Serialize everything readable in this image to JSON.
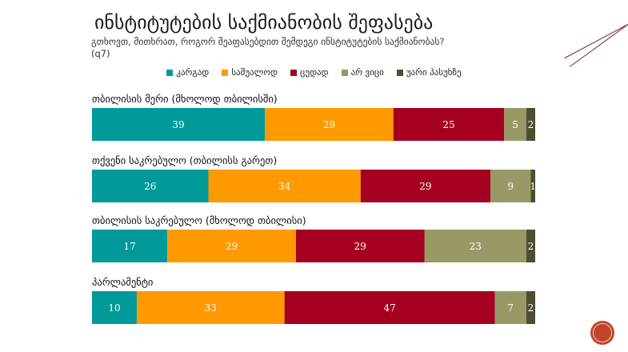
{
  "title": "ინსტიტუტების საქმიანობის შეფასება",
  "subtitle_line1": "გთხოვთ, მითხრათ, როგორ შეაფასებდით  შემდეგი ინსტიტუტების საქმიანობას?",
  "subtitle_line2": "(q7)",
  "colors": {
    "good": "#009999",
    "average": "#ff9900",
    "bad": "#a50021",
    "dk": "#999966",
    "ra": "#4d4d33"
  },
  "chart_data": {
    "type": "bar",
    "orientation": "horizontal",
    "stacked": true,
    "percent_stacked": true,
    "categories": [
      "თბილისის მერი (მხოლოდ თბილისში)",
      "თქვენი საკრებულო (თბილისს გარეთ)",
      "თბილისის საკრებულო (მხოლოდ თბილისი)",
      "პარლამენტი"
    ],
    "series": [
      {
        "name": "კარგად",
        "values": [
          39,
          26,
          17,
          10
        ]
      },
      {
        "name": "საშუალოდ",
        "values": [
          29,
          34,
          29,
          33
        ]
      },
      {
        "name": "ცუდად",
        "values": [
          25,
          29,
          29,
          47
        ]
      },
      {
        "name": "არ ვიცი",
        "values": [
          5,
          9,
          23,
          7
        ]
      },
      {
        "name": "უარი პასუხზე",
        "values": [
          2,
          1,
          2,
          2
        ]
      }
    ],
    "legend_position": "top",
    "grid": false,
    "data_labels": true
  }
}
